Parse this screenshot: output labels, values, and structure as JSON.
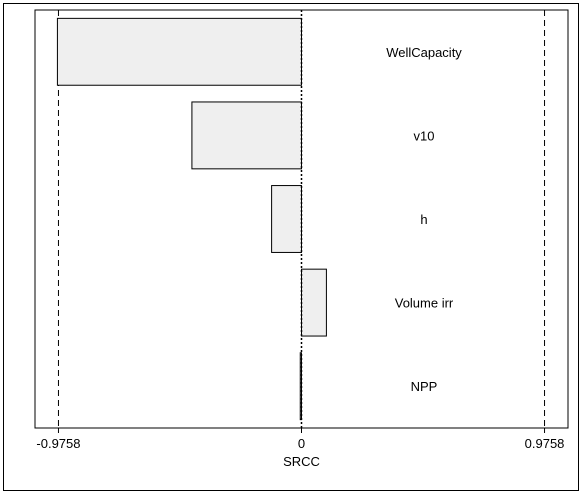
{
  "chart_data": {
    "type": "bar",
    "orientation": "horizontal",
    "xlabel": "SRCC",
    "xlim": [
      -1.07,
      1.07
    ],
    "xticks": [
      -0.9758,
      0,
      0.9758
    ],
    "xtick_labels": [
      "-0.9758",
      "0",
      "0.9758"
    ],
    "threshold_lines": [
      -0.9758,
      0.9758
    ],
    "zero_line": 0,
    "categories": [
      "WellCapacity",
      "v10",
      "h",
      "Volume irr",
      "NPP"
    ],
    "values": [
      -0.98,
      -0.44,
      -0.12,
      0.1,
      -0.005
    ],
    "grid": false,
    "bar_color": "#efefef",
    "edge_color": "#000000"
  }
}
